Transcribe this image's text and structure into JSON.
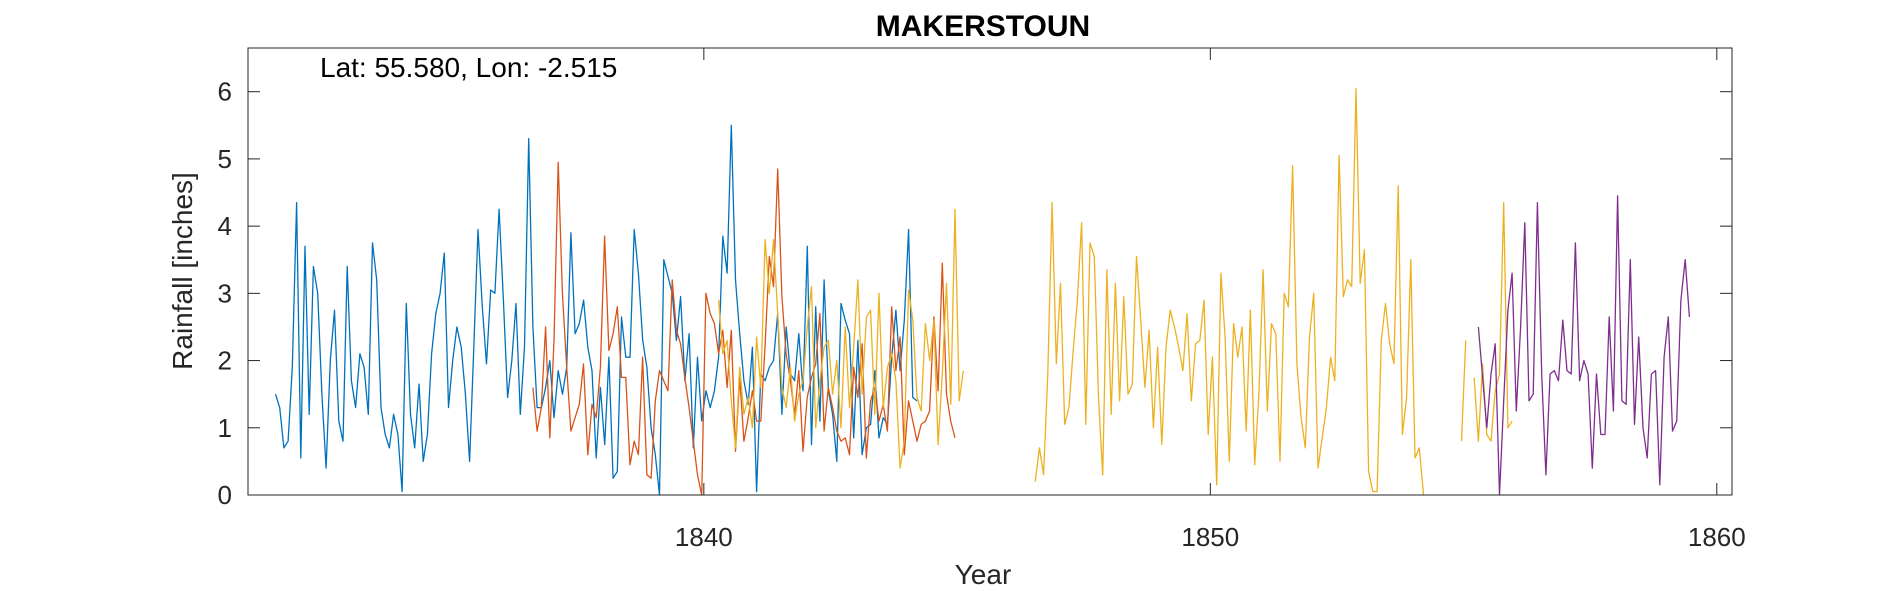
{
  "chart_data": {
    "type": "line",
    "title": "MAKERSTOUN",
    "annotation": "Lat: 55.580, Lon: -2.515",
    "xlabel": "Year",
    "ylabel": "Rainfall [inches]",
    "xlim": [
      1831,
      1860.3
    ],
    "ylim": [
      0,
      6.65
    ],
    "xticks": [
      1840,
      1850,
      1860
    ],
    "yticks": [
      0,
      1,
      2,
      3,
      4,
      5,
      6
    ],
    "grid": false,
    "series": [
      {
        "color": "#0072BD",
        "start": 1831.542,
        "values": [
          1.5,
          1.3,
          0.7,
          0.8,
          1.9,
          4.35,
          0.55,
          3.7,
          1.2,
          3.4,
          3.0,
          1.5,
          0.4,
          2.0,
          2.75,
          1.1,
          0.8,
          3.4,
          1.7,
          1.3,
          2.1,
          1.9,
          1.2,
          3.75,
          3.2,
          1.3,
          0.9,
          0.7,
          1.2,
          0.9,
          0.05,
          2.85,
          1.2,
          0.7,
          1.65,
          0.5,
          0.9,
          2.1,
          2.7,
          3.0,
          3.6,
          1.3,
          2.0,
          2.5,
          2.2,
          1.5,
          0.5,
          2.2,
          3.95,
          2.8,
          1.95,
          3.05,
          3.0,
          4.25,
          2.9,
          1.45,
          2.0,
          2.85,
          1.2,
          2.2,
          5.3,
          2.5,
          1.3,
          1.3,
          1.6,
          2.0,
          1.15,
          1.85,
          1.5,
          1.9,
          3.9,
          2.4,
          2.55,
          2.9,
          2.2,
          1.85,
          0.55,
          1.6,
          0.75,
          2.05,
          0.25,
          0.35,
          2.65,
          2.05,
          2.05,
          3.95,
          3.3,
          2.3,
          1.9,
          1.0,
          0.6,
          0.0,
          3.5,
          3.25,
          3.0,
          2.3,
          2.95,
          1.7,
          2.4,
          0.7,
          2.05,
          1.1,
          1.55,
          1.3,
          1.55,
          2.05,
          3.85,
          3.3,
          5.5,
          3.2,
          2.4,
          1.7,
          1.35,
          2.2,
          0.05,
          1.8,
          1.7,
          1.9,
          2.0,
          2.7,
          1.2,
          2.5,
          1.8,
          1.7,
          2.4,
          1.55,
          3.7,
          0.75,
          2.8,
          1.1,
          3.2,
          1.55,
          1.2,
          0.5,
          2.85,
          2.6,
          2.4,
          0.85,
          2.3,
          0.6,
          1.0,
          1.05,
          1.85,
          0.85,
          1.15,
          1.05,
          2.05,
          2.75,
          1.85,
          2.6,
          3.95,
          1.45,
          1.4
        ]
      },
      {
        "color": "#D95319",
        "start": 1836.625,
        "values": [
          1.6,
          0.95,
          1.3,
          2.5,
          0.85,
          2.3,
          4.95,
          3.0,
          1.9,
          0.95,
          1.15,
          1.35,
          1.95,
          0.6,
          1.35,
          1.15,
          1.9,
          3.85,
          2.15,
          2.4,
          2.8,
          1.75,
          1.75,
          0.45,
          0.8,
          0.6,
          2.05,
          0.3,
          0.25,
          1.4,
          1.85,
          1.7,
          1.55,
          3.2,
          2.45,
          2.25,
          1.75,
          1.3,
          0.8,
          0.3,
          0.0,
          3.0,
          2.7,
          2.55,
          2.1,
          2.45,
          1.6,
          2.45,
          0.65,
          1.75,
          0.8,
          1.15,
          1.55,
          1.1,
          1.1,
          2.2,
          3.55,
          3.1,
          4.85,
          2.95,
          2.1,
          1.7,
          1.2,
          1.85,
          0.65,
          1.45,
          1.75,
          1.95,
          2.7,
          0.95,
          1.6,
          1.3,
          0.95,
          0.8,
          0.85,
          0.6,
          1.9,
          1.45,
          2.25,
          0.55,
          1.4,
          1.6,
          1.1,
          1.35,
          0.95,
          2.8,
          1.85,
          2.35,
          0.6,
          1.4,
          1.1,
          0.8,
          1.05,
          1.1,
          1.25,
          2.65,
          1.55,
          3.45,
          1.5,
          1.1,
          0.85
        ]
      },
      {
        "color": "#EDB120",
        "start": 1840.292,
        "values": [
          2.9,
          2.1,
          2.3,
          1.4,
          0.7,
          1.9,
          1.2,
          1.45,
          1.0,
          2.35,
          1.6,
          3.8,
          3.0,
          3.8,
          2.7,
          1.6,
          1.3,
          1.9,
          1.1,
          1.5,
          1.7,
          2.5,
          3.1,
          1.0,
          1.7,
          2.2,
          2.3,
          1.5,
          2.0,
          1.0,
          2.5,
          1.3,
          2.2,
          3.2,
          1.5,
          2.65,
          2.75,
          1.2,
          3.0,
          1.3,
          1.9,
          2.1,
          1.7,
          0.4,
          0.8,
          3.05,
          2.6,
          1.45,
          1.25,
          2.55,
          2.0,
          2.6,
          0.75,
          1.8,
          3.15,
          1.35,
          4.25,
          1.4,
          1.85,
          null,
          null,
          null,
          null,
          null,
          null,
          null,
          null,
          null,
          null,
          null,
          null,
          null,
          null,
          null,
          null,
          0.2,
          0.7,
          0.3,
          1.8,
          4.35,
          1.95,
          3.15,
          1.05,
          1.3,
          2.15,
          2.9,
          4.05,
          1.05,
          3.75,
          3.55,
          1.45,
          0.3,
          3.35,
          1.2,
          3.15,
          1.4,
          2.95,
          1.5,
          1.65,
          3.55,
          2.6,
          1.6,
          2.45,
          1.0,
          2.2,
          0.75,
          2.2,
          2.75,
          2.5,
          2.2,
          1.85,
          2.7,
          1.4,
          2.25,
          2.3,
          2.9,
          0.9,
          2.05,
          0.15,
          3.3,
          2.35,
          0.5,
          2.55,
          2.05,
          2.5,
          0.95,
          2.75,
          0.45,
          1.5,
          3.35,
          1.25,
          2.55,
          2.4,
          0.5,
          3.0,
          2.8,
          4.9,
          1.95,
          1.15,
          0.7,
          2.35,
          3.0,
          0.4,
          0.85,
          1.3,
          2.05,
          1.7,
          5.05,
          2.95,
          3.2,
          3.1,
          6.05,
          3.15,
          3.65,
          0.35,
          0.05,
          0.05,
          2.3,
          2.85,
          2.25,
          1.95,
          4.6,
          0.9,
          1.45,
          3.5,
          0.55,
          0.7,
          0.0,
          null,
          null,
          null,
          null,
          null,
          null,
          null,
          null,
          0.8,
          2.3,
          null,
          1.75,
          0.8,
          1.95,
          0.9,
          0.8,
          1.55,
          1.8,
          4.35,
          1.0,
          1.1
        ]
      },
      {
        "color": "#7E2F8E",
        "start": 1855.292,
        "values": [
          2.5,
          1.75,
          1.0,
          1.8,
          2.25,
          0.0,
          1.4,
          2.75,
          3.3,
          1.25,
          2.5,
          4.05,
          1.4,
          1.5,
          4.35,
          1.8,
          0.3,
          1.8,
          1.85,
          1.7,
          2.6,
          1.85,
          1.8,
          3.75,
          1.7,
          2.0,
          1.8,
          0.4,
          1.8,
          0.9,
          0.9,
          2.65,
          1.25,
          4.45,
          1.4,
          1.35,
          3.5,
          1.05,
          2.35,
          1.0,
          0.55,
          1.8,
          1.85,
          0.15,
          2.05,
          2.65,
          0.95,
          1.1,
          2.9,
          3.5,
          2.65
        ]
      }
    ]
  }
}
